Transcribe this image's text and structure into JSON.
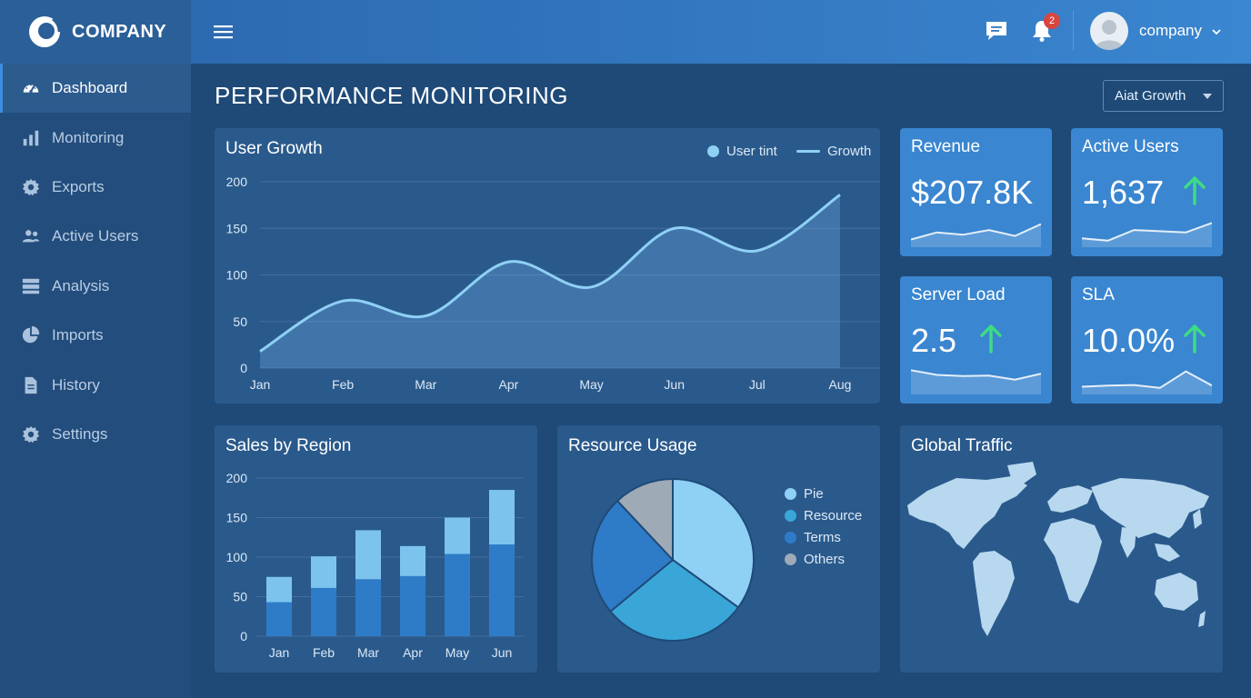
{
  "brand": {
    "name": "COMPANY"
  },
  "sidebar": {
    "items": [
      {
        "label": "Dashboard",
        "icon": "dashboard-gauge-icon",
        "active": true
      },
      {
        "label": "Monitoring",
        "icon": "bar-chart-icon"
      },
      {
        "label": "Exports",
        "icon": "gear-icon"
      },
      {
        "label": "Active Users",
        "icon": "users-icon"
      },
      {
        "label": "Analysis",
        "icon": "server-stack-icon"
      },
      {
        "label": "Imports",
        "icon": "pie-chart-icon"
      },
      {
        "label": "History",
        "icon": "document-icon"
      },
      {
        "label": "Settings",
        "icon": "gear-icon"
      }
    ]
  },
  "topbar": {
    "notification_count": "2",
    "user_name": "company"
  },
  "main": {
    "title": "PERFORMANCE MONITORING",
    "filter_value": "Aiat Growth"
  },
  "kpis": [
    {
      "label": "Revenue",
      "value": "$207.8K",
      "arrow": false,
      "spark": [
        0.25,
        0.55,
        0.45,
        0.65,
        0.4,
        0.9
      ]
    },
    {
      "label": "Active Users",
      "value": "1,637",
      "arrow": true,
      "spark": [
        0.3,
        0.2,
        0.65,
        0.6,
        0.55,
        0.95
      ]
    },
    {
      "label": "Server Load",
      "value": "2.5",
      "arrow": true,
      "spark": [
        0.95,
        0.75,
        0.7,
        0.72,
        0.55,
        0.8
      ]
    },
    {
      "label": "SLA",
      "value": "10.0%",
      "arrow": true,
      "spark": [
        0.25,
        0.3,
        0.32,
        0.2,
        0.9,
        0.3
      ]
    }
  ],
  "colors": {
    "accent": "#3a86d0",
    "up_arrow": "#3ddc84",
    "line": "#8fd0f5"
  },
  "chart_data": [
    {
      "type": "area",
      "title": "User Growth",
      "legend": [
        "User tint",
        "Growth"
      ],
      "legend_placement": "top-right",
      "categories": [
        "Jan",
        "Feb",
        "Mar",
        "Apr",
        "May",
        "Jun",
        "Jul",
        "Aug"
      ],
      "values": [
        18,
        72,
        56,
        114,
        87,
        150,
        126,
        186
      ],
      "ylim": [
        0,
        200
      ],
      "yticks": [
        0,
        50,
        100,
        150,
        200
      ],
      "grid": true
    },
    {
      "type": "bar",
      "title": "Sales by Region",
      "categories": [
        "Jan",
        "Feb",
        "Mar",
        "Apr",
        "May",
        "Jun"
      ],
      "series": [
        {
          "values": [
            43,
            61,
            72,
            76,
            104,
            116
          ]
        },
        {
          "values": [
            32,
            40,
            62,
            38,
            46,
            69
          ]
        }
      ],
      "stacked": true,
      "ylim": [
        0,
        200
      ],
      "yticks": [
        0,
        50,
        100,
        150,
        200
      ],
      "grid": true
    },
    {
      "type": "pie",
      "title": "Resource Usage",
      "labels": [
        "Pie",
        "Resource",
        "Terms",
        "Others"
      ],
      "values": [
        35,
        29,
        24,
        12
      ],
      "colors": [
        "#8fd0f5",
        "#3aa6d8",
        "#2e7cc8",
        "#9eaab6"
      ]
    }
  ],
  "traffic": {
    "title": "Global Traffic"
  }
}
